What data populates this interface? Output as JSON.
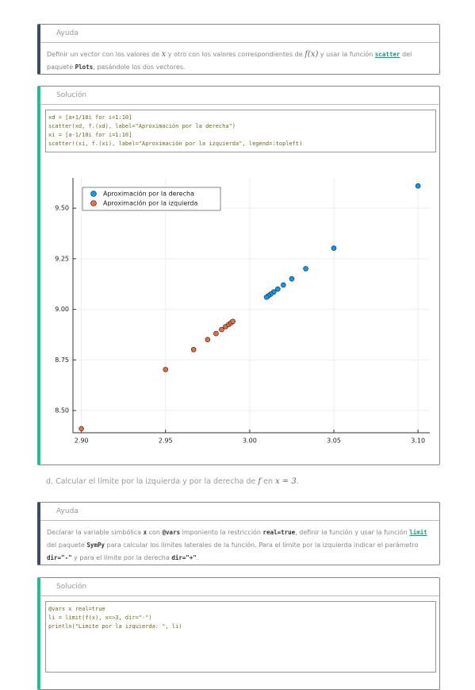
{
  "help1": {
    "title": "Ayuda",
    "parts": [
      "Definir un vector con los valores de ",
      "x",
      " y otro con los valores correspondientes de ",
      "f(x)",
      " y usar la función ",
      "scatter",
      " del paquete ",
      "Plots",
      ", pasándole los dos vectores."
    ]
  },
  "solution1": {
    "title": "Solución",
    "code": [
      "xd = [a+1/10i for i=1:10]",
      "scatter(xd, f.(xd), label=\"Aproximación por la derecha\")",
      "xi = [a-1/10i for i=1:10]",
      "scatter!(xi, f.(xi), label=\"Aproximación por la izquierda\", legend=:topleft)"
    ]
  },
  "chart_data": {
    "type": "scatter",
    "series": [
      {
        "name": "Aproximación por la derecha",
        "color": "#009afa",
        "x": [
          3.1,
          3.05,
          3.0333,
          3.025,
          3.02,
          3.0167,
          3.0143,
          3.0125,
          3.0111,
          3.01
        ],
        "values": [
          9.61,
          9.3025,
          9.2011,
          9.1506,
          9.1204,
          9.1003,
          9.0859,
          9.0752,
          9.0668,
          9.0601
        ]
      },
      {
        "name": "Aproximación por la izquierda",
        "color": "#e36f47",
        "x": [
          2.9,
          2.95,
          2.9667,
          2.975,
          2.98,
          2.9833,
          2.9857,
          2.9875,
          2.9889,
          2.99
        ],
        "values": [
          8.41,
          8.7025,
          8.8011,
          8.8506,
          8.8804,
          8.9003,
          8.9145,
          8.9251,
          8.9334,
          8.9401
        ]
      }
    ],
    "xlim": [
      2.895,
      3.107
    ],
    "ylim": [
      8.39,
      9.65
    ],
    "xticks": [
      {
        "value": 2.9,
        "label": "2.90"
      },
      {
        "value": 2.95,
        "label": "2.95"
      },
      {
        "value": 3.0,
        "label": "3.00"
      },
      {
        "value": 3.05,
        "label": "3.05"
      },
      {
        "value": 3.1,
        "label": "3.10"
      }
    ],
    "yticks": [
      {
        "value": 8.5,
        "label": "8.50"
      },
      {
        "value": 8.75,
        "label": "8.75"
      },
      {
        "value": 9.0,
        "label": "9.00"
      },
      {
        "value": 9.25,
        "label": "9.25"
      },
      {
        "value": 9.5,
        "label": "9.50"
      }
    ],
    "grid": true,
    "legend": "topleft"
  },
  "question": {
    "parts": [
      "d. Calcular el límite por la izquierda y por la derecha de ",
      "f",
      " en ",
      "x = 3",
      "."
    ]
  },
  "help2": {
    "title": "Ayuda",
    "parts": [
      "Declarar la variable simbólica ",
      "x",
      " con ",
      "@vars",
      " imponiento la restricción ",
      "real=true",
      ", definir la función y usar la función ",
      "limit",
      " del paquete ",
      "SymPy",
      " para calcular los límites laterales de la función. Para el límite por la izquierda indicar el parámetro ",
      "dir=\"-\"",
      " y para el límite por la derecha ",
      "dir=\"+\"",
      "."
    ]
  },
  "solution2": {
    "title": "Solución",
    "code": [
      "@vars x real=true",
      "li = limit(f(x), x=>3, dir=\"-\")",
      "println(\"Límite por la izquierda: \", li)"
    ]
  }
}
